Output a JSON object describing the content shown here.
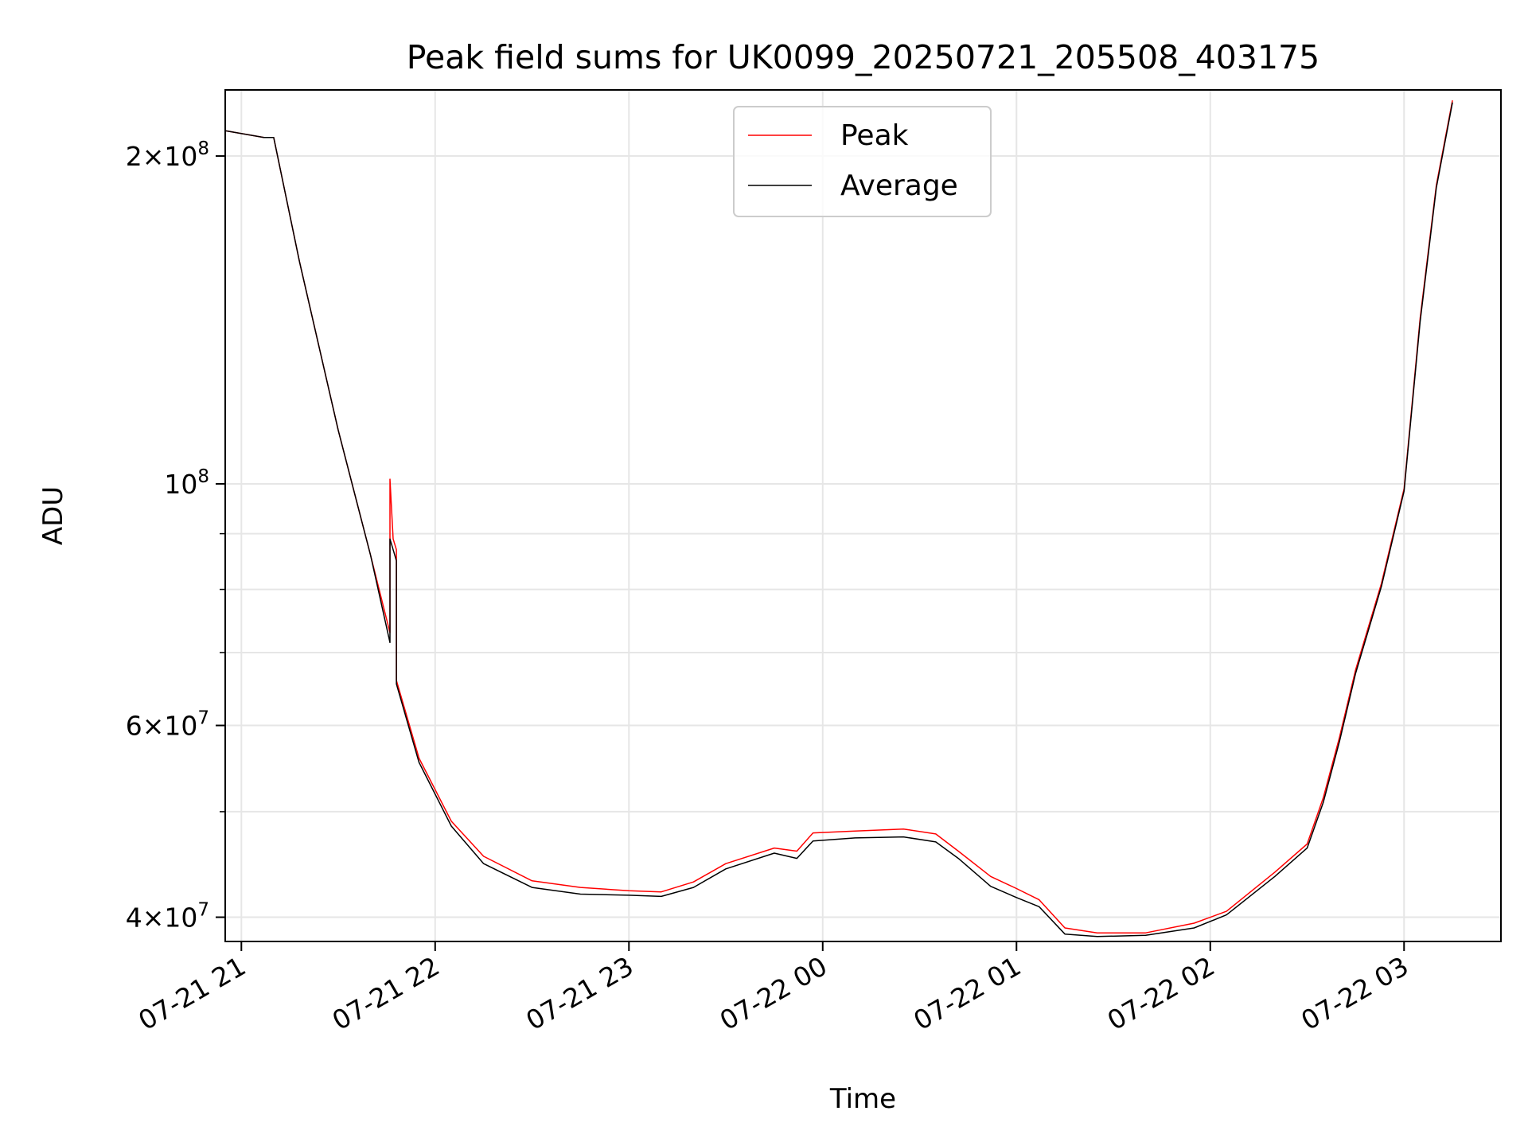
{
  "chart_data": {
    "type": "line",
    "title": "Peak field sums for UK0099_20250721_205508_403175",
    "xlabel": "Time",
    "ylabel": "ADU",
    "yscale": "log",
    "ylim": [
      38000000,
      230000000
    ],
    "xlim": [
      "2025-07-21 20:55",
      "2025-07-22 03:30"
    ],
    "x_ticks": [
      "2025-07-21 21:00",
      "2025-07-21 22:00",
      "2025-07-21 23:00",
      "2025-07-22 00:00",
      "2025-07-22 01:00",
      "2025-07-22 02:00",
      "2025-07-22 03:00"
    ],
    "x_tick_labels": [
      "07-21 21",
      "07-21 22",
      "07-21 23",
      "07-22 00",
      "07-22 01",
      "07-22 02",
      "07-22 03"
    ],
    "y_major_ticks": [
      {
        "value": 40000000,
        "mantissa": "4",
        "exponent": "7"
      },
      {
        "value": 60000000,
        "mantissa": "6",
        "exponent": "7"
      },
      {
        "value": 100000000,
        "mantissa": "",
        "exponent": "8"
      },
      {
        "value": 200000000,
        "mantissa": "2",
        "exponent": "8"
      }
    ],
    "y_minor_ticks": [
      50000000,
      70000000,
      80000000,
      90000000
    ],
    "grid": true,
    "legend": {
      "position": "top-center"
    },
    "series": [
      {
        "name": "Peak",
        "color": "#ff0000",
        "x": [
          "2025-07-21 20:55",
          "2025-07-21 21:07",
          "2025-07-21 21:10",
          "2025-07-21 21:18",
          "2025-07-21 21:30",
          "2025-07-21 21:40",
          "2025-07-21 21:46",
          "2025-07-21 21:46",
          "2025-07-21 21:47",
          "2025-07-21 21:48",
          "2025-07-21 21:48",
          "2025-07-21 21:55",
          "2025-07-21 22:05",
          "2025-07-21 22:15",
          "2025-07-21 22:30",
          "2025-07-21 22:45",
          "2025-07-21 23:00",
          "2025-07-21 23:10",
          "2025-07-21 23:20",
          "2025-07-21 23:30",
          "2025-07-21 23:45",
          "2025-07-21 23:52",
          "2025-07-21 23:57",
          "2025-07-22 00:10",
          "2025-07-22 00:25",
          "2025-07-22 00:35",
          "2025-07-22 00:42",
          "2025-07-22 00:52",
          "2025-07-22 01:00",
          "2025-07-22 01:07",
          "2025-07-22 01:15",
          "2025-07-22 01:25",
          "2025-07-22 01:40",
          "2025-07-22 01:55",
          "2025-07-22 02:05",
          "2025-07-22 02:20",
          "2025-07-22 02:30",
          "2025-07-22 02:35",
          "2025-07-22 02:40",
          "2025-07-22 02:45",
          "2025-07-22 02:53",
          "2025-07-22 03:00",
          "2025-07-22 03:05",
          "2025-07-22 03:10",
          "2025-07-22 03:15"
        ],
        "values": [
          211000000,
          208000000,
          208000000,
          160000000,
          112000000,
          86000000,
          73000000,
          101000000,
          89000000,
          87000000,
          66000000,
          56000000,
          49000000,
          45500000,
          43200000,
          42600000,
          42300000,
          42200000,
          43100000,
          44800000,
          46300000,
          46000000,
          47800000,
          48000000,
          48200000,
          47700000,
          46000000,
          43600000,
          42500000,
          41500000,
          39100000,
          38700000,
          38700000,
          39500000,
          40500000,
          44000000,
          46700000,
          51500000,
          58500000,
          67500000,
          81000000,
          99000000,
          142000000,
          188000000,
          225000000
        ]
      },
      {
        "name": "Average",
        "color": "#000000",
        "x": [
          "2025-07-21 20:55",
          "2025-07-21 21:07",
          "2025-07-21 21:10",
          "2025-07-21 21:18",
          "2025-07-21 21:30",
          "2025-07-21 21:40",
          "2025-07-21 21:46",
          "2025-07-21 21:46",
          "2025-07-21 21:47",
          "2025-07-21 21:48",
          "2025-07-21 21:48",
          "2025-07-21 21:55",
          "2025-07-21 22:05",
          "2025-07-21 22:15",
          "2025-07-21 22:30",
          "2025-07-21 22:45",
          "2025-07-21 23:00",
          "2025-07-21 23:10",
          "2025-07-21 23:20",
          "2025-07-21 23:30",
          "2025-07-21 23:45",
          "2025-07-21 23:52",
          "2025-07-21 23:57",
          "2025-07-22 00:10",
          "2025-07-22 00:25",
          "2025-07-22 00:35",
          "2025-07-22 00:42",
          "2025-07-22 00:52",
          "2025-07-22 01:00",
          "2025-07-22 01:07",
          "2025-07-22 01:15",
          "2025-07-22 01:25",
          "2025-07-22 01:40",
          "2025-07-22 01:55",
          "2025-07-22 02:05",
          "2025-07-22 02:20",
          "2025-07-22 02:30",
          "2025-07-22 02:35",
          "2025-07-22 02:40",
          "2025-07-22 02:45",
          "2025-07-22 02:53",
          "2025-07-22 03:00",
          "2025-07-22 03:05",
          "2025-07-22 03:10",
          "2025-07-22 03:15"
        ],
        "values": [
          211000000,
          208000000,
          208000000,
          160000000,
          112000000,
          86000000,
          71500000,
          89000000,
          87000000,
          85000000,
          65500000,
          55500000,
          48500000,
          44800000,
          42600000,
          42000000,
          41900000,
          41800000,
          42600000,
          44300000,
          45800000,
          45300000,
          47000000,
          47300000,
          47400000,
          46900000,
          45300000,
          42700000,
          41700000,
          40900000,
          38600000,
          38400000,
          38500000,
          39100000,
          40200000,
          43600000,
          46300000,
          51000000,
          58000000,
          67000000,
          80500000,
          98500000,
          141000000,
          187000000,
          224000000
        ]
      }
    ]
  }
}
